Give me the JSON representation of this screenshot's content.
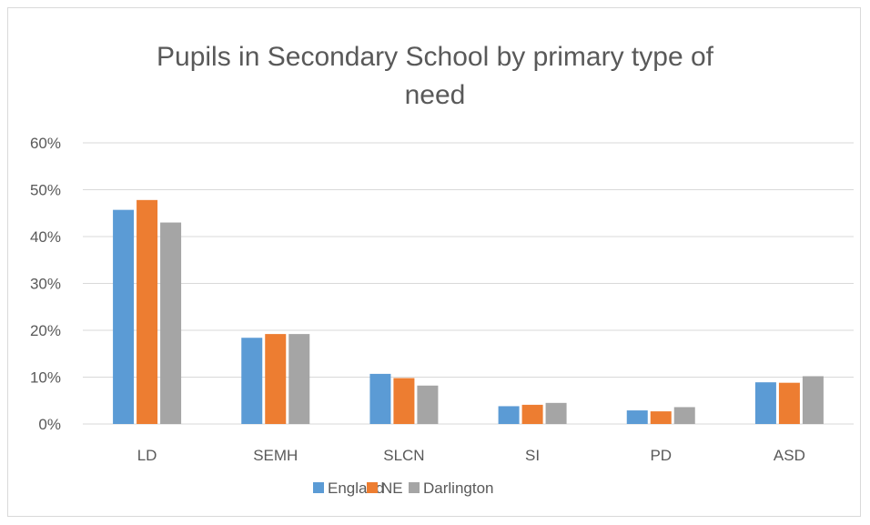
{
  "chart_data": {
    "type": "bar",
    "title": "Pupils in Secondary School by primary type of need",
    "title_lines": [
      "Pupils in Secondary School by primary type of",
      "need"
    ],
    "xlabel": "",
    "ylabel": "",
    "categories": [
      "LD",
      "SEMH",
      "SLCN",
      "SI",
      "PD",
      "ASD"
    ],
    "series": [
      {
        "name": "England",
        "color": "#5b9bd5",
        "values": [
          45.7,
          18.4,
          10.7,
          3.8,
          2.9,
          8.9
        ]
      },
      {
        "name": "NE",
        "color": "#ed7d31",
        "values": [
          47.8,
          19.2,
          9.8,
          4.1,
          2.7,
          8.8
        ]
      },
      {
        "name": "Darlington",
        "color": "#a5a5a5",
        "values": [
          43.0,
          19.2,
          8.2,
          4.5,
          3.6,
          10.2
        ]
      }
    ],
    "ylim": [
      0,
      60
    ],
    "yticks": [
      0,
      10,
      20,
      30,
      40,
      50,
      60
    ],
    "ytick_labels": [
      "0%",
      "10%",
      "20%",
      "30%",
      "40%",
      "50%",
      "60%"
    ],
    "y_unit": "%",
    "grid": true,
    "legend_position": "bottom"
  }
}
